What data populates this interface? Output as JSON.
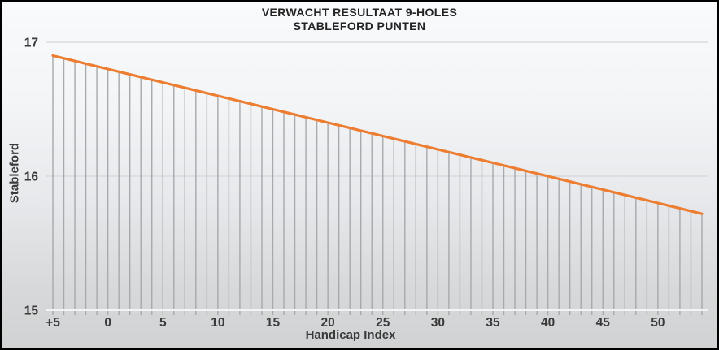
{
  "chart_data": {
    "type": "line",
    "title": "VERWACHT RESULTAAT 9-HOLES",
    "subtitle": "STABLEFORD PUNTEN",
    "xlabel": "Handicap Index",
    "ylabel": "Stableford",
    "xlim": [
      -5,
      54
    ],
    "ylim": [
      15,
      17
    ],
    "grid": "horizontal",
    "legend": "none",
    "drop_lines": true,
    "x_tick_labels": [
      "+5",
      "0",
      "5",
      "10",
      "15",
      "20",
      "25",
      "30",
      "35",
      "40",
      "45",
      "50"
    ],
    "x_tick_values": [
      -5,
      0,
      5,
      10,
      15,
      20,
      25,
      30,
      35,
      40,
      45,
      50
    ],
    "y_tick_labels": [
      "15",
      "16",
      "17"
    ],
    "y_tick_values": [
      15,
      16,
      17
    ],
    "series": [
      {
        "color": "#ED7D31",
        "x": [
          -5,
          -4,
          -3,
          -2,
          -1,
          0,
          1,
          2,
          3,
          4,
          5,
          6,
          7,
          8,
          9,
          10,
          11,
          12,
          13,
          14,
          15,
          16,
          17,
          18,
          19,
          20,
          21,
          22,
          23,
          24,
          25,
          26,
          27,
          28,
          29,
          30,
          31,
          32,
          33,
          34,
          35,
          36,
          37,
          38,
          39,
          40,
          41,
          42,
          43,
          44,
          45,
          46,
          47,
          48,
          49,
          50,
          51,
          52,
          53,
          54
        ],
        "values": [
          16.9,
          16.88,
          16.86,
          16.84,
          16.82,
          16.8,
          16.78,
          16.76,
          16.74,
          16.72,
          16.7,
          16.68,
          16.66,
          16.64,
          16.62,
          16.6,
          16.58,
          16.56,
          16.54,
          16.52,
          16.5,
          16.48,
          16.46,
          16.44,
          16.42,
          16.4,
          16.38,
          16.36,
          16.34,
          16.32,
          16.3,
          16.28,
          16.26,
          16.24,
          16.22,
          16.2,
          16.18,
          16.16,
          16.14,
          16.12,
          16.1,
          16.08,
          16.06,
          16.04,
          16.02,
          16.0,
          15.98,
          15.96,
          15.94,
          15.92,
          15.9,
          15.88,
          15.86,
          15.84,
          15.82,
          15.8,
          15.78,
          15.76,
          15.74,
          15.72
        ]
      }
    ]
  },
  "colors": {
    "line": "#ED7D31",
    "drop_line": "#a6a9ad",
    "gridline": "#d4d6d9",
    "axis_line": "#f2f3f5",
    "title_text": "#232323",
    "tick_text": "#3a3a3a",
    "frame_border": "#000000",
    "bg_top": "#f9fafc",
    "bg_bottom": "#d1d2d3"
  }
}
